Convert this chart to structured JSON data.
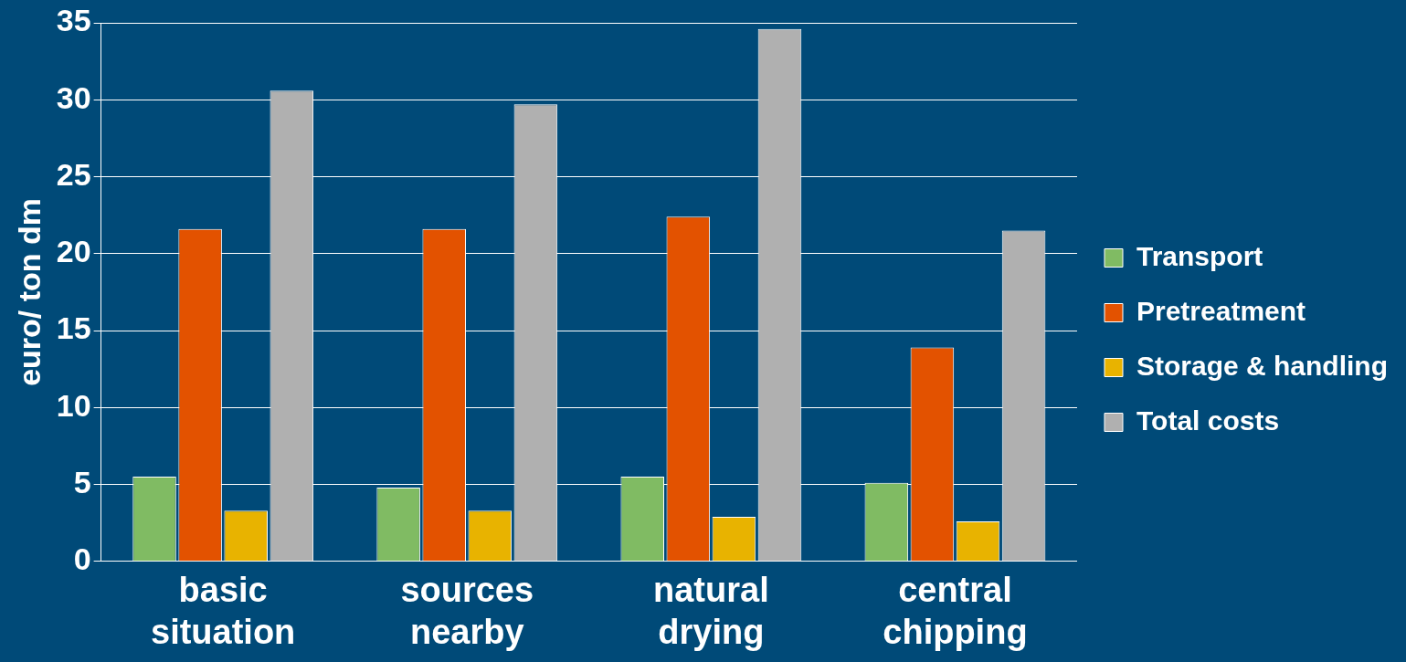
{
  "chart_data": {
    "type": "bar",
    "ylabel": "euro/ ton dm",
    "categories": [
      "basic situation",
      "sources nearby",
      "natural drying",
      "central chipping"
    ],
    "series": [
      {
        "name": "Transport",
        "color": "#80bb63",
        "values": [
          5.5,
          4.8,
          5.5,
          5.1
        ]
      },
      {
        "name": "Pretreatment",
        "color": "#e35200",
        "values": [
          21.6,
          21.6,
          22.4,
          13.9
        ]
      },
      {
        "name": "Storage & handling",
        "color": "#e8b300",
        "values": [
          3.3,
          3.3,
          2.9,
          2.6
        ]
      },
      {
        "name": "Total costs",
        "color": "#b0b0b0",
        "values": [
          30.6,
          29.7,
          34.6,
          21.5
        ]
      }
    ],
    "ylim": [
      0,
      35
    ],
    "yticks": [
      0,
      5,
      10,
      15,
      20,
      25,
      30,
      35
    ],
    "grid": "y",
    "legend": "right"
  }
}
